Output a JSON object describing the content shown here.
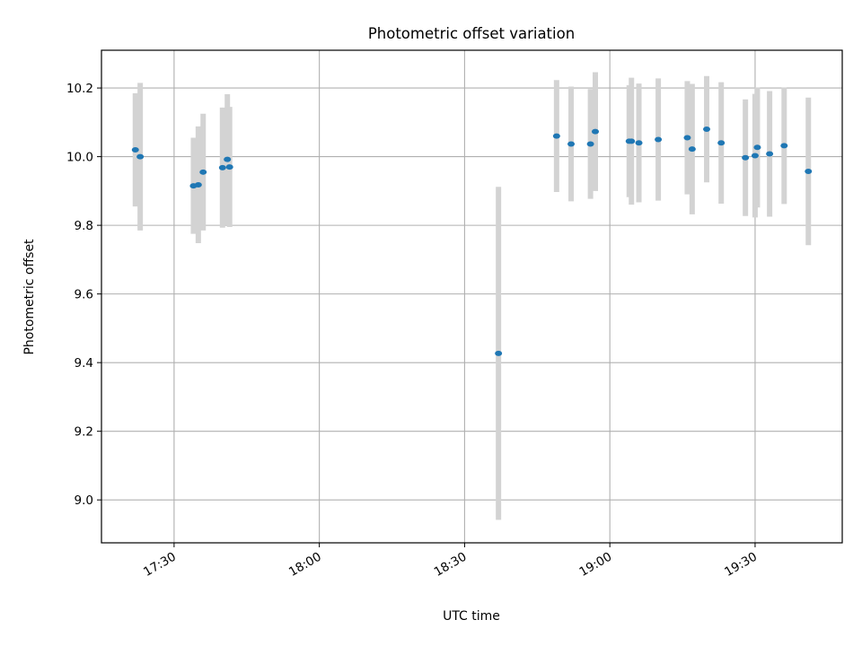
{
  "chart_data": {
    "type": "scatter",
    "title": "Photometric offset variation",
    "xlabel": "UTC time",
    "ylabel": "Photometric offset",
    "x_tick_labels": [
      "17:30",
      "18:00",
      "18:30",
      "19:00",
      "19:30"
    ],
    "x_tick_values": [
      "17:30",
      "18:00",
      "18:30",
      "19:00",
      "19:30"
    ],
    "y_ticks": [
      9.0,
      9.2,
      9.4,
      9.6,
      9.8,
      10.0,
      10.2
    ],
    "xlim": [
      "17:15",
      "19:48"
    ],
    "ylim": [
      8.875,
      10.31
    ],
    "grid": true,
    "colors": {
      "points": "#1f77b4",
      "errorbars": "#d3d3d3",
      "grid": "#b0b0b0"
    },
    "series": [
      {
        "points": [
          {
            "x": "17:22",
            "y": 10.02,
            "err": 0.165
          },
          {
            "x": "17:23",
            "y": 10.0,
            "err": 0.215
          },
          {
            "x": "17:34",
            "y": 9.915,
            "err": 0.14
          },
          {
            "x": "17:35",
            "y": 9.918,
            "err": 0.17
          },
          {
            "x": "17:36",
            "y": 9.955,
            "err": 0.17
          },
          {
            "x": "17:40",
            "y": 9.968,
            "err": 0.175
          },
          {
            "x": "17:41",
            "y": 9.992,
            "err": 0.19
          },
          {
            "x": "17:41",
            "y": 9.97,
            "err": 0.175
          },
          {
            "x": "18:37",
            "y": 9.427,
            "err": 0.485
          },
          {
            "x": "18:49",
            "y": 10.06,
            "err": 0.163
          },
          {
            "x": "18:52",
            "y": 10.037,
            "err": 0.167
          },
          {
            "x": "18:56",
            "y": 10.037,
            "err": 0.16
          },
          {
            "x": "18:57",
            "y": 10.073,
            "err": 0.173
          },
          {
            "x": "19:04",
            "y": 10.045,
            "err": 0.163
          },
          {
            "x": "19:04",
            "y": 10.045,
            "err": 0.185
          },
          {
            "x": "19:06",
            "y": 10.04,
            "err": 0.173
          },
          {
            "x": "19:10",
            "y": 10.05,
            "err": 0.178
          },
          {
            "x": "19:16",
            "y": 10.055,
            "err": 0.165
          },
          {
            "x": "19:17",
            "y": 10.022,
            "err": 0.19
          },
          {
            "x": "19:20",
            "y": 10.08,
            "err": 0.155
          },
          {
            "x": "19:23",
            "y": 10.04,
            "err": 0.177
          },
          {
            "x": "19:28",
            "y": 9.997,
            "err": 0.17
          },
          {
            "x": "19:30",
            "y": 10.003,
            "err": 0.18
          },
          {
            "x": "19:30",
            "y": 10.027,
            "err": 0.175
          },
          {
            "x": "19:33",
            "y": 10.008,
            "err": 0.183
          },
          {
            "x": "19:36",
            "y": 10.032,
            "err": 0.17
          },
          {
            "x": "19:41",
            "y": 9.957,
            "err": 0.215
          }
        ]
      }
    ]
  }
}
